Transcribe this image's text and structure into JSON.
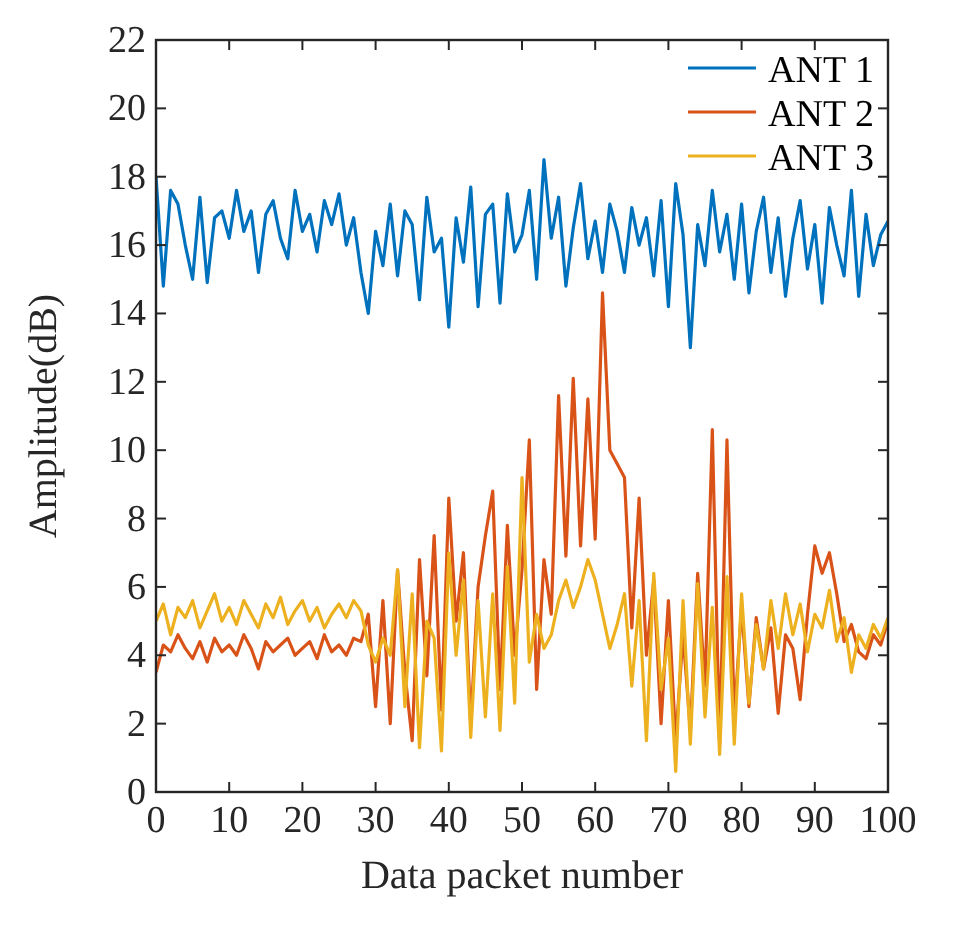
{
  "chart_data": {
    "type": "line",
    "xlabel": "Data packet number",
    "ylabel": "Amplitude(dB)",
    "xlim": [
      0,
      100
    ],
    "ylim": [
      0,
      22
    ],
    "xticks": [
      0,
      10,
      20,
      30,
      40,
      50,
      60,
      70,
      80,
      90,
      100
    ],
    "yticks": [
      0,
      2,
      4,
      6,
      8,
      10,
      12,
      14,
      16,
      18,
      20,
      22
    ],
    "legend": "top right",
    "grid": false,
    "line_style": "solid",
    "marker": "none",
    "x": [
      0,
      1,
      2,
      3,
      4,
      5,
      6,
      7,
      8,
      9,
      10,
      11,
      12,
      13,
      14,
      15,
      16,
      17,
      18,
      19,
      20,
      21,
      22,
      23,
      24,
      25,
      26,
      27,
      28,
      29,
      30,
      31,
      32,
      33,
      34,
      35,
      36,
      37,
      38,
      39,
      40,
      41,
      42,
      43,
      44,
      45,
      46,
      47,
      48,
      49,
      50,
      51,
      52,
      53,
      54,
      55,
      56,
      57,
      58,
      59,
      60,
      61,
      62,
      63,
      64,
      65,
      66,
      67,
      68,
      69,
      70,
      71,
      72,
      73,
      74,
      75,
      76,
      77,
      78,
      79,
      80,
      81,
      82,
      83,
      84,
      85,
      86,
      87,
      88,
      89,
      90,
      91,
      92,
      93,
      94,
      95,
      96,
      97,
      98,
      99,
      100
    ],
    "series": [
      {
        "name": "ANT 1",
        "color": "#0072bd",
        "values": [
          18,
          14.8,
          17.6,
          17.2,
          16,
          15,
          17.4,
          14.9,
          16.8,
          17,
          16.2,
          17.6,
          16.4,
          17,
          15.2,
          16.9,
          17.3,
          16.2,
          15.6,
          17.6,
          16.4,
          16.9,
          15.8,
          17.3,
          16.6,
          17.5,
          16,
          16.8,
          15.2,
          14,
          16.4,
          15.4,
          17.2,
          15.1,
          17,
          16.6,
          14.4,
          17.4,
          15.8,
          16.2,
          13.6,
          16.8,
          15.5,
          17.7,
          14.2,
          16.9,
          17.2,
          14.3,
          17.5,
          15.8,
          16.3,
          17.6,
          15,
          18.5,
          16.2,
          17.4,
          14.8,
          16.5,
          17.8,
          15.6,
          16.7,
          15.2,
          17.2,
          16.4,
          15.2,
          17.1,
          16,
          16.8,
          15.1,
          17.3,
          14.2,
          17.8,
          16.3,
          13,
          16.6,
          15.4,
          17.6,
          15.8,
          16.9,
          15,
          17.2,
          14.6,
          16.4,
          17.4,
          15.2,
          16.8,
          14.5,
          16.2,
          17.3,
          15.3,
          16.6,
          14.3,
          17.1,
          16,
          15.1,
          17.6,
          14.5,
          16.9,
          15.4,
          16.3,
          16.7
        ]
      },
      {
        "name": "ANT 2",
        "color": "#d95319",
        "values": [
          3.5,
          4.3,
          4.1,
          4.6,
          4.2,
          3.9,
          4.4,
          3.8,
          4.5,
          4.1,
          4.3,
          4,
          4.6,
          4.2,
          3.6,
          4.4,
          4.1,
          4.3,
          4.5,
          4,
          4.2,
          4.4,
          3.9,
          4.6,
          4.1,
          4.3,
          4,
          4.5,
          4.4,
          5.2,
          2.5,
          5.6,
          2,
          6.5,
          3.5,
          1.5,
          6.8,
          3.4,
          7.5,
          2.4,
          8.6,
          5,
          7,
          2,
          6,
          7.5,
          8.8,
          3,
          7.8,
          4,
          6.5,
          10.3,
          3,
          6.8,
          5.2,
          11.6,
          6.9,
          12.1,
          7.2,
          11.5,
          7.4,
          14.6,
          10,
          9.6,
          9.2,
          4.8,
          8.6,
          4,
          6.2,
          2,
          5.6,
          1.5,
          4.6,
          1.8,
          6.4,
          3.1,
          10.6,
          1.4,
          10.3,
          2.2,
          5.4,
          2.5,
          5.1,
          3.6,
          4.8,
          2.3,
          4.6,
          4.2,
          2.7,
          5.2,
          7.2,
          6.4,
          7,
          5.8,
          4.4,
          4.9,
          4.1,
          3.9,
          4.6,
          4.3,
          5
        ]
      },
      {
        "name": "ANT 3",
        "color": "#edb120",
        "values": [
          5,
          5.5,
          4.6,
          5.4,
          5.1,
          5.6,
          4.8,
          5.3,
          5.8,
          5,
          5.4,
          4.9,
          5.6,
          5.2,
          4.8,
          5.5,
          5.1,
          5.7,
          4.9,
          5.3,
          5.6,
          5,
          5.4,
          4.8,
          5.2,
          5.5,
          5.1,
          5.6,
          5.3,
          4.3,
          3.8,
          4.5,
          4,
          6.5,
          2.5,
          5.8,
          1.3,
          5,
          4.5,
          1.2,
          7,
          4,
          6.2,
          1.6,
          5.6,
          2.2,
          5.8,
          1.8,
          6.6,
          2.6,
          9.2,
          3.8,
          5.2,
          4.2,
          4.6,
          5.6,
          6.2,
          5.4,
          6,
          6.8,
          6.2,
          5.2,
          4.2,
          4.9,
          5.8,
          3.1,
          5.6,
          1.5,
          6.4,
          3,
          4.5,
          0.6,
          5.6,
          1.4,
          6.1,
          2.2,
          5.4,
          1.1,
          6.3,
          1.4,
          5.8,
          2.6,
          4.9,
          3.6,
          5.6,
          4.2,
          5.8,
          4.6,
          5.5,
          4.1,
          5.2,
          4.8,
          5.9,
          4.4,
          5.1,
          3.5,
          4.6,
          4.2,
          4.9,
          4.5,
          5.1
        ]
      }
    ]
  }
}
